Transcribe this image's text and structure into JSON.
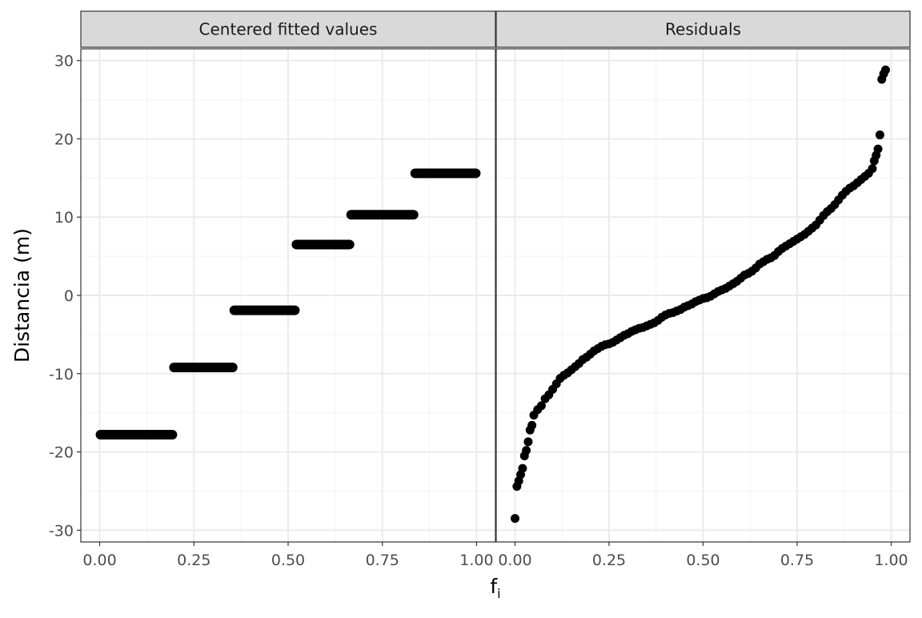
{
  "chart_data": {
    "type": "scatter",
    "xlabel": "f",
    "xlabel_subscript": "i",
    "ylabel": "Distancia (m)",
    "ylim": [
      -31.5,
      31.5
    ],
    "xlim": [
      -0.05,
      1.05
    ],
    "y_ticks": [
      -30,
      -20,
      -10,
      0,
      10,
      20,
      30
    ],
    "y_tick_labels": [
      "-30",
      "-20",
      "-10",
      "0",
      "10",
      "20",
      "30"
    ],
    "x_ticks": [
      0,
      0.25,
      0.5,
      0.75,
      1
    ],
    "x_tick_labels": [
      "0.00",
      "0.25",
      "0.50",
      "0.75",
      "1.00"
    ],
    "grid": true,
    "colors": {
      "points": "#000000",
      "strip_fill": "#d9d9d9",
      "grid_major": "#ebebeb",
      "grid_minor": "#f4f4f4",
      "border": "#333333",
      "tick_text": "#4d4d4d"
    },
    "panels": [
      {
        "title": "Centered fitted values",
        "kind": "steps",
        "segments": [
          {
            "x_start": 0.0,
            "x_end": 0.195,
            "y": -17.8
          },
          {
            "x_start": 0.195,
            "x_end": 0.355,
            "y": -9.2
          },
          {
            "x_start": 0.355,
            "x_end": 0.52,
            "y": -1.9
          },
          {
            "x_start": 0.52,
            "x_end": 0.665,
            "y": 6.5
          },
          {
            "x_start": 0.665,
            "x_end": 0.835,
            "y": 10.3
          },
          {
            "x_start": 0.835,
            "x_end": 1.0,
            "y": 15.6
          }
        ]
      },
      {
        "title": "Residuals",
        "kind": "quantile",
        "points": [
          [
            0.0,
            -28.5
          ],
          [
            0.005,
            -24.4
          ],
          [
            0.01,
            -23.7
          ],
          [
            0.015,
            -22.9
          ],
          [
            0.02,
            -22.1
          ],
          [
            0.025,
            -20.5
          ],
          [
            0.03,
            -19.8
          ],
          [
            0.035,
            -18.7
          ],
          [
            0.04,
            -17.2
          ],
          [
            0.045,
            -16.6
          ],
          [
            0.05,
            -15.3
          ],
          [
            0.06,
            -14.6
          ],
          [
            0.07,
            -14.1
          ],
          [
            0.08,
            -13.2
          ],
          [
            0.09,
            -12.7
          ],
          [
            0.1,
            -12.0
          ],
          [
            0.11,
            -11.3
          ],
          [
            0.12,
            -10.6
          ],
          [
            0.13,
            -10.2
          ],
          [
            0.14,
            -9.9
          ],
          [
            0.15,
            -9.5
          ],
          [
            0.16,
            -9.1
          ],
          [
            0.17,
            -8.7
          ],
          [
            0.18,
            -8.2
          ],
          [
            0.19,
            -7.9
          ],
          [
            0.2,
            -7.5
          ],
          [
            0.21,
            -7.1
          ],
          [
            0.22,
            -6.8
          ],
          [
            0.23,
            -6.5
          ],
          [
            0.24,
            -6.3
          ],
          [
            0.25,
            -6.2
          ],
          [
            0.26,
            -6.0
          ],
          [
            0.27,
            -5.7
          ],
          [
            0.28,
            -5.4
          ],
          [
            0.29,
            -5.1
          ],
          [
            0.3,
            -4.9
          ],
          [
            0.31,
            -4.6
          ],
          [
            0.32,
            -4.4
          ],
          [
            0.33,
            -4.2
          ],
          [
            0.34,
            -4.1
          ],
          [
            0.35,
            -3.9
          ],
          [
            0.36,
            -3.7
          ],
          [
            0.37,
            -3.5
          ],
          [
            0.38,
            -3.2
          ],
          [
            0.39,
            -2.8
          ],
          [
            0.4,
            -2.5
          ],
          [
            0.41,
            -2.3
          ],
          [
            0.42,
            -2.2
          ],
          [
            0.43,
            -2.0
          ],
          [
            0.44,
            -1.8
          ],
          [
            0.45,
            -1.5
          ],
          [
            0.46,
            -1.3
          ],
          [
            0.47,
            -1.1
          ],
          [
            0.48,
            -0.8
          ],
          [
            0.49,
            -0.6
          ],
          [
            0.5,
            -0.4
          ],
          [
            0.51,
            -0.3
          ],
          [
            0.52,
            -0.1
          ],
          [
            0.53,
            0.2
          ],
          [
            0.54,
            0.5
          ],
          [
            0.55,
            0.7
          ],
          [
            0.56,
            0.9
          ],
          [
            0.57,
            1.2
          ],
          [
            0.58,
            1.5
          ],
          [
            0.59,
            1.8
          ],
          [
            0.6,
            2.2
          ],
          [
            0.61,
            2.6
          ],
          [
            0.62,
            2.8
          ],
          [
            0.63,
            3.1
          ],
          [
            0.64,
            3.5
          ],
          [
            0.65,
            4.0
          ],
          [
            0.66,
            4.3
          ],
          [
            0.67,
            4.6
          ],
          [
            0.68,
            4.8
          ],
          [
            0.69,
            5.1
          ],
          [
            0.7,
            5.6
          ],
          [
            0.71,
            6.0
          ],
          [
            0.72,
            6.3
          ],
          [
            0.73,
            6.6
          ],
          [
            0.74,
            6.9
          ],
          [
            0.75,
            7.2
          ],
          [
            0.76,
            7.5
          ],
          [
            0.77,
            7.8
          ],
          [
            0.78,
            8.2
          ],
          [
            0.79,
            8.6
          ],
          [
            0.8,
            9.0
          ],
          [
            0.81,
            9.6
          ],
          [
            0.82,
            10.2
          ],
          [
            0.83,
            10.7
          ],
          [
            0.84,
            11.1
          ],
          [
            0.85,
            11.6
          ],
          [
            0.86,
            12.2
          ],
          [
            0.87,
            12.8
          ],
          [
            0.88,
            13.3
          ],
          [
            0.89,
            13.7
          ],
          [
            0.9,
            14.0
          ],
          [
            0.91,
            14.4
          ],
          [
            0.92,
            14.8
          ],
          [
            0.93,
            15.2
          ],
          [
            0.94,
            15.6
          ],
          [
            0.95,
            16.2
          ],
          [
            0.955,
            17.2
          ],
          [
            0.96,
            17.9
          ],
          [
            0.965,
            18.7
          ],
          [
            0.97,
            20.5
          ],
          [
            0.975,
            27.6
          ],
          [
            0.98,
            28.3
          ],
          [
            0.985,
            28.8
          ]
        ]
      }
    ]
  }
}
